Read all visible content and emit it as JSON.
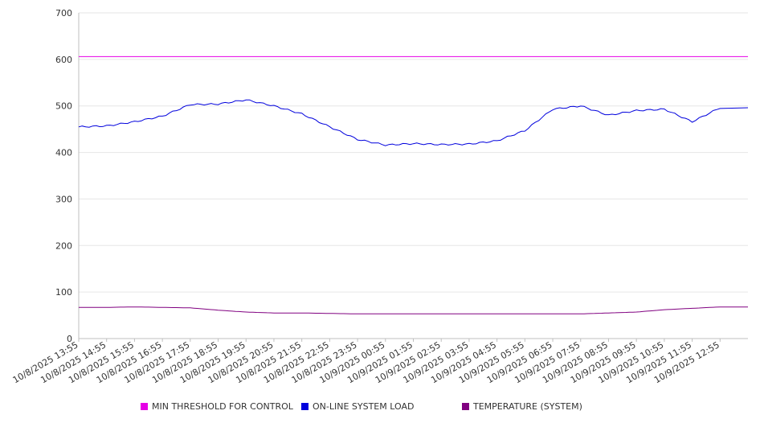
{
  "chart_data": {
    "type": "line",
    "title": "",
    "xlabel": "",
    "ylabel": "",
    "ylim": [
      0,
      700
    ],
    "yticks": [
      0,
      100,
      200,
      300,
      400,
      500,
      600,
      700
    ],
    "grid": "horizontal",
    "legend_position": "bottom",
    "x": [
      "10/8/2025 13:55",
      "10/8/2025 14:55",
      "10/8/2025 15:55",
      "10/8/2025 16:55",
      "10/8/2025 17:55",
      "10/8/2025 18:55",
      "10/8/2025 19:55",
      "10/8/2025 20:55",
      "10/8/2025 21:55",
      "10/8/2025 22:55",
      "10/8/2025 23:55",
      "10/9/2025 00:55",
      "10/9/2025 01:55",
      "10/9/2025 02:55",
      "10/9/2025 03:55",
      "10/9/2025 04:55",
      "10/9/2025 05:55",
      "10/9/2025 06:55",
      "10/9/2025 07:55",
      "10/9/2025 08:55",
      "10/9/2025 09:55",
      "10/9/2025 10:55",
      "10/9/2025 11:55",
      "10/9/2025 12:55"
    ],
    "series": [
      {
        "name": "MIN THRESHOLD FOR CONTROL",
        "color": "#e600e6",
        "values": [
          606,
          606,
          606,
          606,
          606,
          606,
          606,
          606,
          606,
          606,
          606,
          606,
          606,
          606,
          606,
          606,
          606,
          606,
          606,
          606,
          606,
          606,
          606,
          606
        ]
      },
      {
        "name": "ON-LINE SYSTEM LOAD",
        "color": "#0000dd",
        "values": [
          455,
          457,
          466,
          478,
          503,
          504,
          513,
          500,
          483,
          455,
          428,
          416,
          419,
          417,
          418,
          425,
          447,
          493,
          500,
          480,
          490,
          493,
          466,
          496
        ]
      },
      {
        "name": "TEMPERATURE (SYSTEM)",
        "color": "#800080",
        "values": [
          67,
          67,
          68,
          67,
          66,
          61,
          57,
          55,
          55,
          54,
          53,
          53,
          53,
          53,
          53,
          53,
          53,
          53,
          53,
          55,
          57,
          62,
          65,
          68
        ]
      }
    ]
  }
}
